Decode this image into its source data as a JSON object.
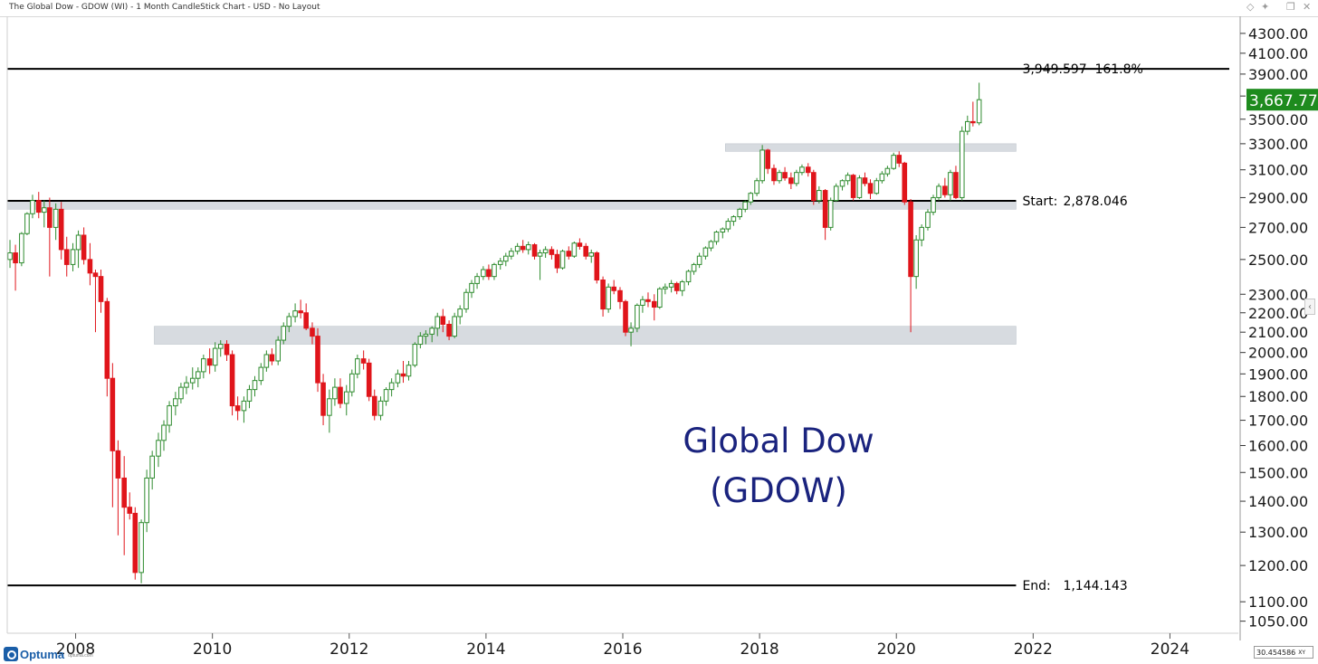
{
  "window": {
    "title": "The Global Dow - GDOW (WI) - 1 Month CandleStick Chart - USD - No Layout",
    "controls": [
      {
        "name": "diamond-icon",
        "glyph": "◇"
      },
      {
        "name": "pin-icon",
        "glyph": "✦"
      },
      {
        "name": "restore-icon",
        "glyph": "❐"
      },
      {
        "name": "close-icon",
        "glyph": "✕"
      }
    ]
  },
  "branding": {
    "name": "Optuma",
    "url": "optuma.com"
  },
  "status": {
    "coordinate_readout": "30.454586",
    "xy_label": "XY"
  },
  "chart_data": {
    "type": "candlestick",
    "title": "Global Dow",
    "subtitle": "(GDOW)",
    "colors": {
      "up": "#2e8b2e",
      "down": "#e0151b",
      "zone": "#c9cfd6",
      "title": "#1a237e",
      "last": "#1e8b1e"
    },
    "y_scale": "log",
    "ylim": [
      1020,
      4480
    ],
    "xlim": [
      2007.0,
      2025.0
    ],
    "x_ticks": [
      "2008",
      "2010",
      "2012",
      "2014",
      "2016",
      "2018",
      "2020",
      "2022",
      "2024"
    ],
    "y_ticks": [
      "1050.00",
      "1100.00",
      "1200.00",
      "1300.00",
      "1400.00",
      "1500.00",
      "1600.00",
      "1700.00",
      "1800.00",
      "1900.00",
      "2000.00",
      "2100.00",
      "2200.00",
      "2300.00",
      "2500.00",
      "2700.00",
      "2900.00",
      "3100.00",
      "3300.00",
      "3500.00",
      "3700.00",
      "3900.00",
      "4100.00",
      "4300.00"
    ],
    "last_price": "3,667.77",
    "last_value": 3667.77,
    "levels": [
      {
        "value": 3949.597,
        "label": "3,949.597",
        "pct": "161.8%"
      },
      {
        "value": 2878.046,
        "label": "Start:",
        "value_text": "2,878.046"
      },
      {
        "value": 1144.143,
        "label": "End:",
        "value_text": "1,144.143"
      }
    ],
    "zones": [
      {
        "x0": 2017.5,
        "x1": 2021.75,
        "low": 3240,
        "high": 3300
      },
      {
        "x0": 2007.0,
        "x1": 2021.75,
        "low": 2820,
        "high": 2880
      },
      {
        "x0": 2009.15,
        "x1": 2021.75,
        "low": 2040,
        "high": 2130
      }
    ],
    "candles": [
      [
        2007.04,
        2500,
        2620,
        2450,
        2540
      ],
      [
        2007.12,
        2540,
        2590,
        2320,
        2480
      ],
      [
        2007.21,
        2480,
        2670,
        2460,
        2660
      ],
      [
        2007.29,
        2660,
        2800,
        2650,
        2790
      ],
      [
        2007.37,
        2790,
        2920,
        2760,
        2880
      ],
      [
        2007.46,
        2880,
        2940,
        2760,
        2800
      ],
      [
        2007.54,
        2800,
        2880,
        2700,
        2830
      ],
      [
        2007.62,
        2830,
        2900,
        2400,
        2700
      ],
      [
        2007.71,
        2700,
        2860,
        2620,
        2820
      ],
      [
        2007.79,
        2820,
        2870,
        2500,
        2560
      ],
      [
        2007.87,
        2560,
        2640,
        2400,
        2470
      ],
      [
        2007.96,
        2470,
        2600,
        2430,
        2560
      ],
      [
        2008.04,
        2560,
        2680,
        2450,
        2650
      ],
      [
        2008.12,
        2650,
        2700,
        2470,
        2500
      ],
      [
        2008.21,
        2500,
        2600,
        2350,
        2420
      ],
      [
        2008.29,
        2420,
        2440,
        2100,
        2400
      ],
      [
        2008.37,
        2400,
        2440,
        2200,
        2260
      ],
      [
        2008.46,
        2260,
        2280,
        1800,
        1880
      ],
      [
        2008.54,
        1880,
        1950,
        1380,
        1580
      ],
      [
        2008.62,
        1580,
        1620,
        1290,
        1480
      ],
      [
        2008.71,
        1480,
        1560,
        1230,
        1380
      ],
      [
        2008.79,
        1380,
        1430,
        1340,
        1360
      ],
      [
        2008.87,
        1360,
        1380,
        1160,
        1180
      ],
      [
        2008.96,
        1180,
        1340,
        1150,
        1330
      ],
      [
        2009.04,
        1330,
        1510,
        1300,
        1480
      ],
      [
        2009.12,
        1480,
        1580,
        1440,
        1560
      ],
      [
        2009.21,
        1560,
        1650,
        1520,
        1620
      ],
      [
        2009.29,
        1620,
        1700,
        1580,
        1680
      ],
      [
        2009.37,
        1680,
        1780,
        1650,
        1760
      ],
      [
        2009.46,
        1760,
        1820,
        1720,
        1790
      ],
      [
        2009.54,
        1790,
        1860,
        1770,
        1840
      ],
      [
        2009.62,
        1840,
        1890,
        1810,
        1860
      ],
      [
        2009.71,
        1860,
        1930,
        1830,
        1880
      ],
      [
        2009.79,
        1880,
        1930,
        1840,
        1910
      ],
      [
        2009.87,
        1910,
        1990,
        1880,
        1970
      ],
      [
        2009.96,
        1970,
        2020,
        1900,
        1940
      ],
      [
        2010.04,
        1940,
        2050,
        1910,
        2020
      ],
      [
        2010.12,
        2020,
        2060,
        1980,
        2040
      ],
      [
        2010.21,
        2040,
        2060,
        1960,
        1990
      ],
      [
        2010.29,
        1990,
        2010,
        1720,
        1760
      ],
      [
        2010.37,
        1760,
        1800,
        1700,
        1740
      ],
      [
        2010.46,
        1740,
        1800,
        1690,
        1780
      ],
      [
        2010.54,
        1780,
        1850,
        1750,
        1830
      ],
      [
        2010.62,
        1830,
        1890,
        1800,
        1870
      ],
      [
        2010.71,
        1870,
        1950,
        1850,
        1930
      ],
      [
        2010.79,
        1930,
        2010,
        1910,
        1990
      ],
      [
        2010.87,
        1990,
        2020,
        1940,
        1960
      ],
      [
        2010.96,
        1960,
        2080,
        1940,
        2060
      ],
      [
        2011.04,
        2060,
        2150,
        2040,
        2130
      ],
      [
        2011.12,
        2130,
        2200,
        2100,
        2180
      ],
      [
        2011.21,
        2180,
        2250,
        2150,
        2210
      ],
      [
        2011.29,
        2210,
        2270,
        2170,
        2200
      ],
      [
        2011.37,
        2200,
        2250,
        2110,
        2120
      ],
      [
        2011.46,
        2120,
        2150,
        2040,
        2080
      ],
      [
        2011.54,
        2080,
        2120,
        1820,
        1860
      ],
      [
        2011.62,
        1860,
        1900,
        1680,
        1720
      ],
      [
        2011.71,
        1720,
        1830,
        1650,
        1790
      ],
      [
        2011.79,
        1790,
        1880,
        1760,
        1840
      ],
      [
        2011.87,
        1840,
        1880,
        1750,
        1770
      ],
      [
        2011.96,
        1770,
        1850,
        1720,
        1820
      ],
      [
        2012.04,
        1820,
        1920,
        1800,
        1900
      ],
      [
        2012.12,
        1900,
        1990,
        1880,
        1970
      ],
      [
        2012.21,
        1970,
        2010,
        1920,
        1950
      ],
      [
        2012.29,
        1950,
        1970,
        1780,
        1800
      ],
      [
        2012.37,
        1800,
        1830,
        1700,
        1720
      ],
      [
        2012.46,
        1720,
        1800,
        1700,
        1780
      ],
      [
        2012.54,
        1780,
        1840,
        1760,
        1830
      ],
      [
        2012.62,
        1830,
        1880,
        1800,
        1860
      ],
      [
        2012.71,
        1860,
        1920,
        1840,
        1900
      ],
      [
        2012.79,
        1900,
        1960,
        1860,
        1890
      ],
      [
        2012.87,
        1890,
        1960,
        1870,
        1940
      ],
      [
        2012.96,
        1940,
        2050,
        1930,
        2040
      ],
      [
        2013.04,
        2040,
        2100,
        2020,
        2080
      ],
      [
        2013.12,
        2080,
        2110,
        2040,
        2090
      ],
      [
        2013.21,
        2090,
        2130,
        2050,
        2120
      ],
      [
        2013.29,
        2120,
        2200,
        2080,
        2180
      ],
      [
        2013.37,
        2180,
        2220,
        2100,
        2140
      ],
      [
        2013.46,
        2140,
        2160,
        2060,
        2080
      ],
      [
        2013.54,
        2080,
        2200,
        2070,
        2180
      ],
      [
        2013.62,
        2180,
        2240,
        2140,
        2220
      ],
      [
        2013.71,
        2220,
        2330,
        2200,
        2310
      ],
      [
        2013.79,
        2310,
        2380,
        2280,
        2360
      ],
      [
        2013.87,
        2360,
        2420,
        2330,
        2400
      ],
      [
        2013.96,
        2400,
        2460,
        2380,
        2440
      ],
      [
        2014.04,
        2440,
        2470,
        2380,
        2400
      ],
      [
        2014.12,
        2400,
        2480,
        2380,
        2470
      ],
      [
        2014.21,
        2470,
        2510,
        2440,
        2490
      ],
      [
        2014.29,
        2490,
        2540,
        2460,
        2520
      ],
      [
        2014.37,
        2520,
        2570,
        2500,
        2550
      ],
      [
        2014.46,
        2550,
        2600,
        2530,
        2580
      ],
      [
        2014.54,
        2580,
        2620,
        2540,
        2560
      ],
      [
        2014.62,
        2560,
        2610,
        2530,
        2590
      ],
      [
        2014.71,
        2590,
        2600,
        2500,
        2520
      ],
      [
        2014.79,
        2520,
        2560,
        2380,
        2540
      ],
      [
        2014.87,
        2540,
        2580,
        2510,
        2560
      ],
      [
        2014.96,
        2560,
        2580,
        2500,
        2530
      ],
      [
        2015.04,
        2530,
        2560,
        2420,
        2450
      ],
      [
        2015.12,
        2450,
        2560,
        2440,
        2550
      ],
      [
        2015.21,
        2550,
        2580,
        2500,
        2520
      ],
      [
        2015.29,
        2520,
        2610,
        2510,
        2600
      ],
      [
        2015.37,
        2600,
        2630,
        2560,
        2580
      ],
      [
        2015.46,
        2580,
        2600,
        2500,
        2520
      ],
      [
        2015.54,
        2520,
        2560,
        2480,
        2540
      ],
      [
        2015.62,
        2540,
        2550,
        2360,
        2380
      ],
      [
        2015.71,
        2380,
        2400,
        2180,
        2220
      ],
      [
        2015.79,
        2220,
        2360,
        2200,
        2340
      ],
      [
        2015.87,
        2340,
        2380,
        2300,
        2320
      ],
      [
        2015.96,
        2320,
        2340,
        2220,
        2260
      ],
      [
        2016.04,
        2260,
        2270,
        2080,
        2100
      ],
      [
        2016.12,
        2100,
        2150,
        2030,
        2120
      ],
      [
        2016.21,
        2120,
        2250,
        2100,
        2240
      ],
      [
        2016.29,
        2240,
        2290,
        2200,
        2270
      ],
      [
        2016.37,
        2270,
        2310,
        2230,
        2260
      ],
      [
        2016.46,
        2260,
        2300,
        2160,
        2230
      ],
      [
        2016.54,
        2230,
        2340,
        2220,
        2330
      ],
      [
        2016.62,
        2330,
        2360,
        2300,
        2340
      ],
      [
        2016.71,
        2340,
        2380,
        2310,
        2360
      ],
      [
        2016.79,
        2360,
        2370,
        2300,
        2320
      ],
      [
        2016.87,
        2320,
        2380,
        2290,
        2370
      ],
      [
        2016.96,
        2370,
        2440,
        2350,
        2430
      ],
      [
        2017.04,
        2430,
        2480,
        2410,
        2470
      ],
      [
        2017.12,
        2470,
        2540,
        2450,
        2520
      ],
      [
        2017.21,
        2520,
        2580,
        2500,
        2570
      ],
      [
        2017.29,
        2570,
        2620,
        2550,
        2610
      ],
      [
        2017.37,
        2610,
        2680,
        2590,
        2670
      ],
      [
        2017.46,
        2670,
        2700,
        2630,
        2690
      ],
      [
        2017.54,
        2690,
        2760,
        2670,
        2740
      ],
      [
        2017.62,
        2740,
        2780,
        2710,
        2770
      ],
      [
        2017.71,
        2770,
        2830,
        2750,
        2820
      ],
      [
        2017.79,
        2820,
        2880,
        2800,
        2870
      ],
      [
        2017.87,
        2870,
        2940,
        2850,
        2930
      ],
      [
        2017.96,
        2930,
        3040,
        2910,
        3020
      ],
      [
        2018.04,
        3020,
        3290,
        3000,
        3250
      ],
      [
        2018.12,
        3250,
        3260,
        3070,
        3110
      ],
      [
        2018.21,
        3110,
        3140,
        2990,
        3020
      ],
      [
        2018.29,
        3020,
        3100,
        3000,
        3080
      ],
      [
        2018.37,
        3080,
        3120,
        3020,
        3040
      ],
      [
        2018.46,
        3040,
        3080,
        2960,
        3000
      ],
      [
        2018.54,
        3000,
        3100,
        2980,
        3080
      ],
      [
        2018.62,
        3080,
        3140,
        3060,
        3120
      ],
      [
        2018.71,
        3120,
        3150,
        3050,
        3080
      ],
      [
        2018.79,
        3080,
        3100,
        2850,
        2880
      ],
      [
        2018.87,
        2880,
        2980,
        2860,
        2950
      ],
      [
        2018.96,
        2950,
        2960,
        2620,
        2700
      ],
      [
        2019.04,
        2700,
        2900,
        2680,
        2880
      ],
      [
        2019.12,
        2880,
        3000,
        2870,
        2980
      ],
      [
        2019.21,
        2980,
        3030,
        2950,
        3020
      ],
      [
        2019.29,
        3020,
        3080,
        2990,
        3060
      ],
      [
        2019.37,
        3060,
        3070,
        2880,
        2900
      ],
      [
        2019.46,
        2900,
        3060,
        2890,
        3040
      ],
      [
        2019.54,
        3040,
        3080,
        2980,
        3000
      ],
      [
        2019.62,
        3000,
        3030,
        2890,
        2930
      ],
      [
        2019.71,
        2930,
        3040,
        2920,
        3020
      ],
      [
        2019.79,
        3020,
        3090,
        3000,
        3070
      ],
      [
        2019.87,
        3070,
        3130,
        3050,
        3110
      ],
      [
        2019.96,
        3110,
        3230,
        3100,
        3210
      ],
      [
        2020.04,
        3210,
        3240,
        3120,
        3150
      ],
      [
        2020.12,
        3150,
        3160,
        2850,
        2870
      ],
      [
        2020.21,
        2870,
        2890,
        2100,
        2400
      ],
      [
        2020.29,
        2400,
        2650,
        2330,
        2620
      ],
      [
        2020.37,
        2620,
        2720,
        2580,
        2700
      ],
      [
        2020.46,
        2700,
        2820,
        2680,
        2800
      ],
      [
        2020.54,
        2800,
        2920,
        2780,
        2900
      ],
      [
        2020.62,
        2900,
        3000,
        2880,
        2980
      ],
      [
        2020.71,
        2980,
        3040,
        2900,
        2920
      ],
      [
        2020.79,
        2920,
        3100,
        2880,
        3080
      ],
      [
        2020.87,
        3080,
        3130,
        2890,
        2900
      ],
      [
        2020.96,
        2900,
        3440,
        2880,
        3400
      ],
      [
        2021.04,
        3400,
        3530,
        3370,
        3480
      ],
      [
        2021.12,
        3480,
        3650,
        3440,
        3470
      ],
      [
        2021.21,
        3470,
        3820,
        3450,
        3667.77
      ]
    ]
  }
}
